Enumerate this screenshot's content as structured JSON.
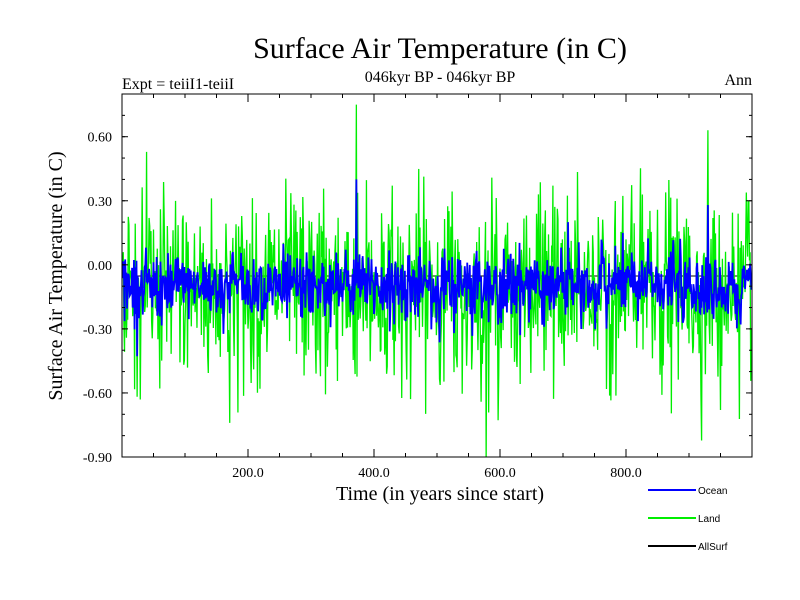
{
  "chart_data": {
    "type": "line",
    "title": "Surface Air Temperature (in C)",
    "subtitle": "046kyr BP - 046kyr BP",
    "left_caption": "Expt = teiiI1-teiiI",
    "right_caption": "Ann",
    "xlabel": "Time (in years since start)",
    "ylabel": "Surface Air Temperature (in C)",
    "xlim": [
      0,
      1000
    ],
    "ylim": [
      -0.9,
      0.8
    ],
    "xticks": [
      200,
      400,
      600,
      800
    ],
    "xtick_labels": [
      "200.0",
      "400.0",
      "600.0",
      "800.0"
    ],
    "yticks": [
      -0.9,
      -0.6,
      -0.3,
      0.0,
      0.3,
      0.6
    ],
    "ytick_labels": [
      "-0.90",
      "-0.60",
      "-0.30",
      "0.00",
      "0.30",
      "0.60"
    ],
    "zero_line": true,
    "grid": false,
    "legend_position": "bottom-right",
    "series": [
      {
        "name": "Land",
        "color": "#00ee00",
        "x_start": 1,
        "x_step": 1,
        "n": 999,
        "mean": -0.12,
        "spread": 0.2,
        "notable_points": [
          [
            171,
            -0.74
          ],
          [
            372,
            0.75
          ],
          [
            930,
            0.63
          ],
          [
            950,
            -0.68
          ]
        ]
      },
      {
        "name": "Ocean",
        "color": "#0000ff",
        "x_start": 1,
        "x_step": 1,
        "n": 999,
        "mean": -0.1,
        "spread": 0.09,
        "notable_points": [
          [
            372,
            0.4
          ],
          [
            708,
            0.2
          ],
          [
            930,
            0.28
          ]
        ]
      },
      {
        "name": "AllSurf",
        "color": "#000000",
        "x_start": 1,
        "x_step": 1,
        "n": 0,
        "mean": 0,
        "spread": 0,
        "notable_points": []
      }
    ]
  },
  "legend": {
    "items": [
      {
        "label": "Ocean",
        "color": "#0000ff"
      },
      {
        "label": "Land",
        "color": "#00ee00"
      },
      {
        "label": "AllSurf",
        "color": "#000000"
      }
    ]
  }
}
